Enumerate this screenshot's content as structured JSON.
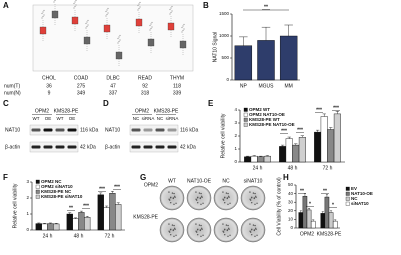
{
  "panel_a": {
    "label": "A",
    "categories": [
      "CHOL",
      "COAD",
      "DLBC",
      "READ",
      "THYM"
    ],
    "count_labels": [
      "num(T)",
      "num(N)"
    ],
    "tumor_counts": [
      36,
      275,
      47,
      92,
      118
    ],
    "normal_counts": [
      9,
      349,
      337,
      318,
      339
    ]
  },
  "chart_data": [
    {
      "type": "bar",
      "label": "B",
      "y_label": "NAT10 Signal",
      "categories": [
        "NP",
        "MGUS",
        "MM"
      ],
      "values": [
        780,
        900,
        1000
      ],
      "errors": [
        200,
        300,
        250
      ],
      "color": "#2e3d6b",
      "ylim": [
        0,
        1500
      ],
      "yticks": [
        0,
        500,
        1000,
        1500
      ],
      "annotations": [
        "**"
      ]
    },
    {
      "type": "bar",
      "label": "E",
      "y_label": "Relative cell viability",
      "categories": [
        "24 h",
        "48 h",
        "72 h"
      ],
      "series": [
        {
          "name": "OPM2 WT",
          "color": "#111111",
          "values": [
            0.4,
            1.2,
            2.3
          ],
          "errors": [
            0.05,
            0.1,
            0.15
          ]
        },
        {
          "name": "OPM2 NAT10-OE",
          "color": "#ffffff",
          "values": [
            0.45,
            1.8,
            3.5
          ],
          "errors": [
            0.05,
            0.12,
            0.2
          ]
        },
        {
          "name": "KMS28-PE WT",
          "color": "#888888",
          "values": [
            0.4,
            1.3,
            2.5
          ],
          "errors": [
            0.05,
            0.1,
            0.15
          ]
        },
        {
          "name": "KMS28-PE NAT10-OE",
          "color": "#d0d0d0",
          "values": [
            0.45,
            1.9,
            3.7
          ],
          "errors": [
            0.05,
            0.12,
            0.2
          ]
        }
      ],
      "ylim": [
        0,
        4
      ],
      "yticks": [
        0,
        1,
        2,
        3,
        4
      ],
      "legend": "upper left",
      "annotations": [
        "***",
        "***",
        "***",
        "***"
      ]
    },
    {
      "type": "bar",
      "label": "F",
      "y_label": "Relative cell viability",
      "categories": [
        "24 h",
        "48 h",
        "72 h"
      ],
      "series": [
        {
          "name": "OPM2 NC",
          "color": "#111111",
          "values": [
            0.4,
            1.0,
            2.2
          ],
          "errors": [
            0.04,
            0.08,
            0.12
          ]
        },
        {
          "name": "OPM2 siNAT10",
          "color": "#ffffff",
          "values": [
            0.38,
            0.7,
            1.4
          ],
          "errors": [
            0.04,
            0.06,
            0.1
          ]
        },
        {
          "name": "KMS28-PE NC",
          "color": "#888888",
          "values": [
            0.4,
            1.1,
            2.3
          ],
          "errors": [
            0.04,
            0.08,
            0.12
          ]
        },
        {
          "name": "KMS28-PE siNAT10",
          "color": "#d0d0d0",
          "values": [
            0.38,
            0.8,
            1.6
          ],
          "errors": [
            0.04,
            0.06,
            0.1
          ]
        }
      ],
      "ylim": [
        0,
        3
      ],
      "yticks": [
        0,
        1,
        2,
        3
      ],
      "legend": "upper left",
      "annotations": [
        "**",
        "***",
        "***",
        "***"
      ]
    },
    {
      "type": "bar",
      "label": "H",
      "y_label": "Cell Viability (% of control)",
      "categories": [
        "OPM2",
        "KMS28-PE"
      ],
      "series": [
        {
          "name": "EV",
          "color": "#111111",
          "values": [
            18,
            17
          ],
          "errors": [
            2,
            2
          ]
        },
        {
          "name": "NAT10-OE",
          "color": "#777777",
          "values": [
            37,
            36
          ],
          "errors": [
            3,
            3
          ]
        },
        {
          "name": "NC",
          "color": "#cccccc",
          "values": [
            21,
            18
          ],
          "errors": [
            2,
            2
          ]
        },
        {
          "name": "siNAT10",
          "color": "#ffffff",
          "values": [
            8,
            8
          ],
          "errors": [
            1.5,
            1.5
          ]
        }
      ],
      "ylim": [
        0,
        50
      ],
      "yticks": [
        0,
        10,
        20,
        30,
        40,
        50
      ],
      "legend": "right",
      "annotations": [
        "**",
        "*",
        "**",
        "*"
      ]
    }
  ],
  "blot_c": {
    "label": "C",
    "cell_lines": [
      "OPM2",
      "KMS28-PE"
    ],
    "lanes": [
      "WT",
      "OE",
      "WT",
      "OE"
    ],
    "bands": [
      {
        "protein": "NAT10",
        "size": "116 kDa"
      },
      {
        "protein": "β-actin",
        "size": "42 kDa"
      }
    ]
  },
  "blot_d": {
    "label": "D",
    "cell_lines": [
      "OPM2",
      "KMS28-PE"
    ],
    "lanes": [
      "NC",
      "siRNA",
      "NC",
      "siRNA"
    ],
    "bands": [
      {
        "protein": "NAT10",
        "size": "116 kDa"
      },
      {
        "protein": "β-actin",
        "size": "42 kDa"
      }
    ]
  },
  "colony_g": {
    "label": "G",
    "columns": [
      "WT",
      "NAT10-OE",
      "NC",
      "siNAT10"
    ],
    "rows": [
      "OPM2",
      "KMS28-PE"
    ]
  }
}
